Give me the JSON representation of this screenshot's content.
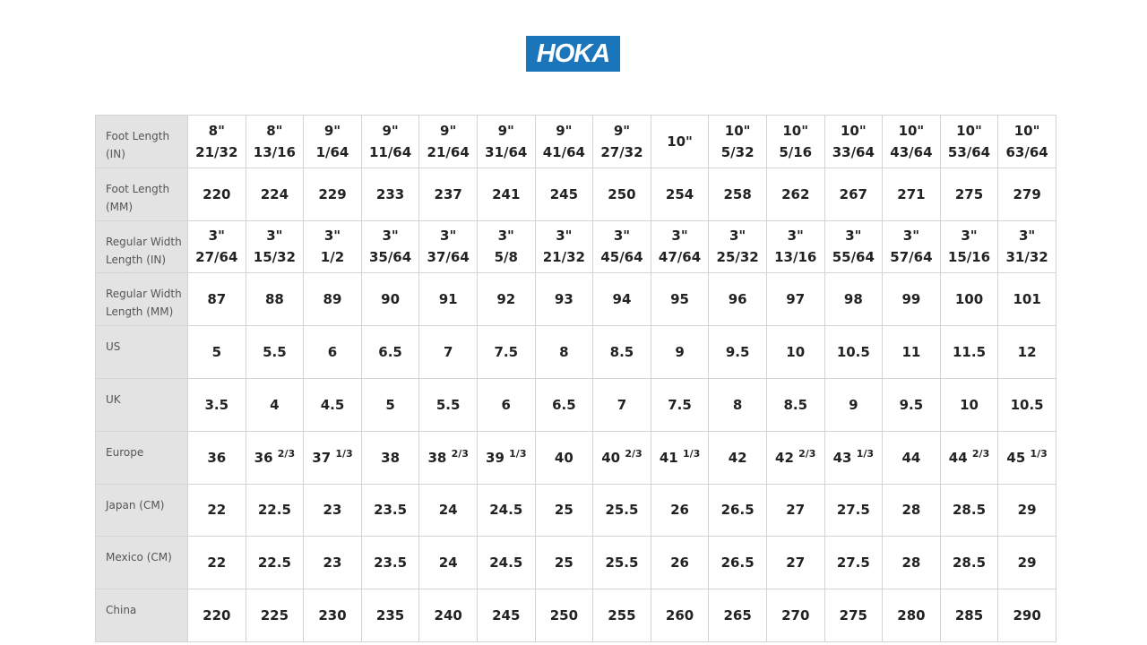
{
  "brand": {
    "logo_text": "HOKA",
    "color": "#1a75bb"
  },
  "size_chart": {
    "rows": [
      {
        "label": "Foot Length\n(IN)",
        "cells": [
          "8\"\n21/32",
          "8\"\n13/16",
          "9\"\n1/64",
          "9\"\n11/64",
          "9\"\n21/64",
          "9\"\n31/64",
          "9\"\n41/64",
          "9\"\n27/32",
          "10\"",
          "10\"\n5/32",
          "10\"\n5/16",
          "10\"\n33/64",
          "10\"\n43/64",
          "10\"\n53/64",
          "10\"\n63/64"
        ]
      },
      {
        "label": "Foot Length\n(MM)",
        "cells": [
          "220",
          "224",
          "229",
          "233",
          "237",
          "241",
          "245",
          "250",
          "254",
          "258",
          "262",
          "267",
          "271",
          "275",
          "279"
        ]
      },
      {
        "label": "Regular Width\nLength (IN)",
        "cells": [
          "3\"\n27/64",
          "3\"\n15/32",
          "3\"\n1/2",
          "3\"\n35/64",
          "3\"\n37/64",
          "3\"\n5/8",
          "3\"\n21/32",
          "3\"\n45/64",
          "3\"\n47/64",
          "3\"\n25/32",
          "3\"\n13/16",
          "3\"\n55/64",
          "3\"\n57/64",
          "3\"\n15/16",
          "3\"\n31/32"
        ]
      },
      {
        "label": "Regular Width\nLength (MM)",
        "cells": [
          "87",
          "88",
          "89",
          "90",
          "91",
          "92",
          "93",
          "94",
          "95",
          "96",
          "97",
          "98",
          "99",
          "100",
          "101"
        ]
      },
      {
        "label": "US",
        "cells": [
          "5",
          "5.5",
          "6",
          "6.5",
          "7",
          "7.5",
          "8",
          "8.5",
          "9",
          "9.5",
          "10",
          "10.5",
          "11",
          "11.5",
          "12"
        ]
      },
      {
        "label": "UK",
        "cells": [
          "3.5",
          "4",
          "4.5",
          "5",
          "5.5",
          "6",
          "6.5",
          "7",
          "7.5",
          "8",
          "8.5",
          "9",
          "9.5",
          "10",
          "10.5"
        ]
      },
      {
        "label": "Europe",
        "cells": [
          {
            "main": "36"
          },
          {
            "main": "36",
            "sup": "2/3"
          },
          {
            "main": "37",
            "sup": "1/3"
          },
          {
            "main": "38"
          },
          {
            "main": "38",
            "sup": "2/3"
          },
          {
            "main": "39",
            "sup": "1/3"
          },
          {
            "main": "40"
          },
          {
            "main": "40",
            "sup": "2/3"
          },
          {
            "main": "41",
            "sup": "1/3"
          },
          {
            "main": "42"
          },
          {
            "main": "42",
            "sup": "2/3"
          },
          {
            "main": "43",
            "sup": "1/3"
          },
          {
            "main": "44"
          },
          {
            "main": "44",
            "sup": "2/3"
          },
          {
            "main": "45",
            "sup": "1/3"
          }
        ]
      },
      {
        "label": "Japan (CM)",
        "cells": [
          "22",
          "22.5",
          "23",
          "23.5",
          "24",
          "24.5",
          "25",
          "25.5",
          "26",
          "26.5",
          "27",
          "27.5",
          "28",
          "28.5",
          "29"
        ]
      },
      {
        "label": "Mexico (CM)",
        "cells": [
          "22",
          "22.5",
          "23",
          "23.5",
          "24",
          "24.5",
          "25",
          "25.5",
          "26",
          "26.5",
          "27",
          "27.5",
          "28",
          "28.5",
          "29"
        ]
      },
      {
        "label": "China",
        "cells": [
          "220",
          "225",
          "230",
          "235",
          "240",
          "245",
          "250",
          "255",
          "260",
          "265",
          "270",
          "275",
          "280",
          "285",
          "290"
        ]
      }
    ]
  }
}
